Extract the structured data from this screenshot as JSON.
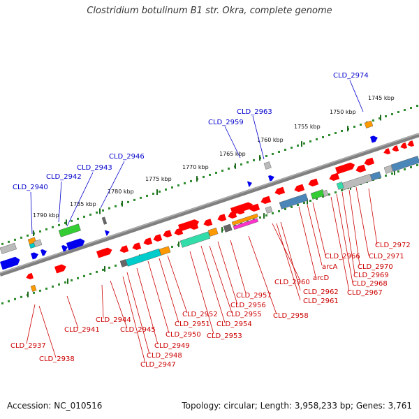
{
  "title": "Clostridium botulinum B1 str. Okra, complete genome",
  "footer": {
    "accession": "Accession: NC_010516",
    "summary": "Topology: circular; Length: 3,958,233 bp; Genes: 3,761"
  },
  "colors": {
    "backbone": "#808080",
    "ruler_dot": "#2e8b2e",
    "ruler_tick": "#1d6b1d",
    "callout_blue": "#0000cc",
    "callout_red": "#cc0000",
    "gene_red": "#ff0000",
    "gene_blue": "#0000ee",
    "gene_green": "#33cc33",
    "gene_orange": "#ff9900",
    "gene_cyan": "#00cccc",
    "gene_teal": "#33ddaa",
    "gene_gray": "#bbbbbb",
    "gene_darkgray": "#666666",
    "gene_steelblue": "#4a86b8",
    "gene_magenta": "#ff33cc"
  },
  "scale_labels": [
    "1745 kbp",
    "1750 kbp",
    "1755 kbp",
    "1760 kbp",
    "1765 kbp",
    "1770 kbp",
    "1775 kbp",
    "1780 kbp",
    "1785 kbp",
    "1790 kbp"
  ],
  "callouts_top": [
    "CLD_2974",
    "CLD_2963",
    "CLD_2959",
    "CLD_2946",
    "CLD_2943",
    "CLD_2942",
    "CLD_2940"
  ],
  "callouts_bottom": [
    "CLD_2972",
    "CLD_2971",
    "CLD_2970",
    "CLD_2969",
    "CLD_2968",
    "CLD_2967",
    "CLD_2966",
    "arcA",
    "arcD",
    "CLD_2962",
    "CLD_2961",
    "CLD_2960",
    "CLD_2958",
    "CLD_2957",
    "CLD_2956",
    "CLD_2955",
    "CLD_2954",
    "CLD_2953",
    "CLD_2952",
    "CLD_2951",
    "CLD_2950",
    "CLD_2949",
    "CLD_2948",
    "CLD_2947",
    "CLD_2945",
    "CLD_2944",
    "CLD_2941",
    "CLD_2937",
    "CLD_2938"
  ]
}
